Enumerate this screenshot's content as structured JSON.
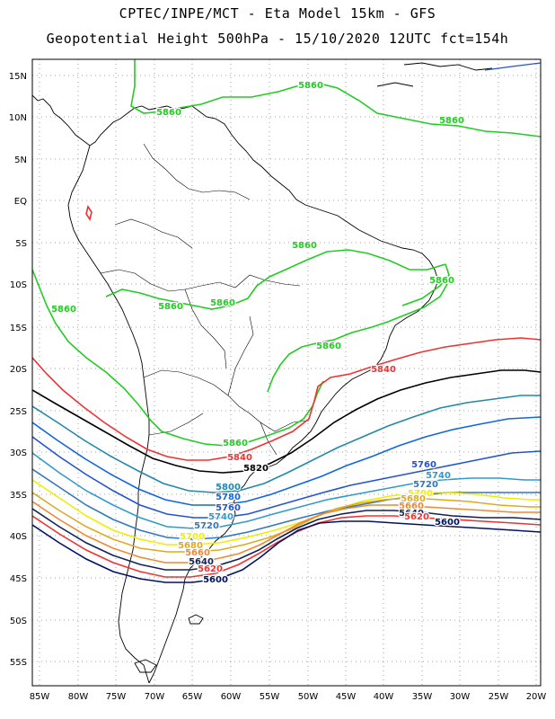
{
  "title": {
    "line1": "CPTEC/INPE/MCT -  Eta Model 15km - GFS",
    "line2": "Geopotential Height 500hPa - 15/10/2020 12UTC fct=154h"
  },
  "axes": {
    "lon_labels": [
      "85W",
      "80W",
      "75W",
      "70W",
      "65W",
      "60W",
      "55W",
      "50W",
      "45W",
      "40W",
      "35W",
      "30W",
      "25W",
      "20W"
    ],
    "lat_labels": [
      "15N",
      "10N",
      "5N",
      "EQ",
      "5S",
      "10S",
      "15S",
      "20S",
      "25S",
      "30S",
      "35S",
      "40S",
      "45S",
      "50S",
      "55S"
    ]
  },
  "contours": [
    {
      "level": "5860",
      "color": "#22cc22"
    },
    {
      "level": "5840",
      "color": "#ee3333"
    },
    {
      "level": "5820",
      "color": "#000000"
    },
    {
      "level": "5800",
      "color": "#2288aa"
    },
    {
      "level": "5780",
      "color": "#1166dd"
    },
    {
      "level": "5760",
      "color": "#2255cc"
    },
    {
      "level": "5740",
      "color": "#3399cc"
    },
    {
      "level": "5720",
      "color": "#3377bb"
    },
    {
      "level": "5700",
      "color": "#eeee00"
    },
    {
      "level": "5680",
      "color": "#ddaa22"
    },
    {
      "level": "5660",
      "color": "#ee8833"
    },
    {
      "level": "5640",
      "color": "#112255"
    },
    {
      "level": "5620",
      "color": "#ee3333"
    },
    {
      "level": "5600",
      "color": "#001166"
    }
  ],
  "labels": [
    {
      "text": "5860",
      "color": "#22cc22"
    },
    {
      "text": "5860",
      "color": "#22cc22"
    },
    {
      "text": "5860",
      "color": "#22cc22"
    },
    {
      "text": "5860",
      "color": "#22cc22"
    },
    {
      "text": "5860",
      "color": "#22cc22"
    },
    {
      "text": "5860",
      "color": "#22cc22"
    },
    {
      "text": "5860",
      "color": "#22cc22"
    },
    {
      "text": "5860",
      "color": "#22cc22"
    },
    {
      "text": "5860",
      "color": "#22cc22"
    },
    {
      "text": "5860",
      "color": "#22cc22"
    },
    {
      "text": "5840",
      "color": "#ee3333"
    },
    {
      "text": "5840",
      "color": "#ee3333"
    },
    {
      "text": "5820",
      "color": "#000000"
    },
    {
      "text": "5800",
      "color": "#2288aa"
    },
    {
      "text": "5780",
      "color": "#1166dd"
    },
    {
      "text": "5760",
      "color": "#2255cc"
    },
    {
      "text": "5740",
      "color": "#3399cc"
    },
    {
      "text": "5720",
      "color": "#3377bb"
    },
    {
      "text": "5700",
      "color": "#eeee00"
    },
    {
      "text": "5680",
      "color": "#ddaa22"
    },
    {
      "text": "5660",
      "color": "#ee8833"
    },
    {
      "text": "5640",
      "color": "#112255"
    },
    {
      "text": "5620",
      "color": "#ee3333"
    },
    {
      "text": "5600",
      "color": "#001166"
    },
    {
      "text": "5760",
      "color": "#2255cc"
    },
    {
      "text": "5740",
      "color": "#3399cc"
    },
    {
      "text": "5720",
      "color": "#3377bb"
    },
    {
      "text": "5700",
      "color": "#eeee00"
    },
    {
      "text": "5680",
      "color": "#ddaa22"
    },
    {
      "text": "5660",
      "color": "#ee8833"
    },
    {
      "text": "5640",
      "color": "#112255"
    },
    {
      "text": "5620",
      "color": "#ee3333"
    },
    {
      "text": "5600",
      "color": "#001166"
    }
  ]
}
